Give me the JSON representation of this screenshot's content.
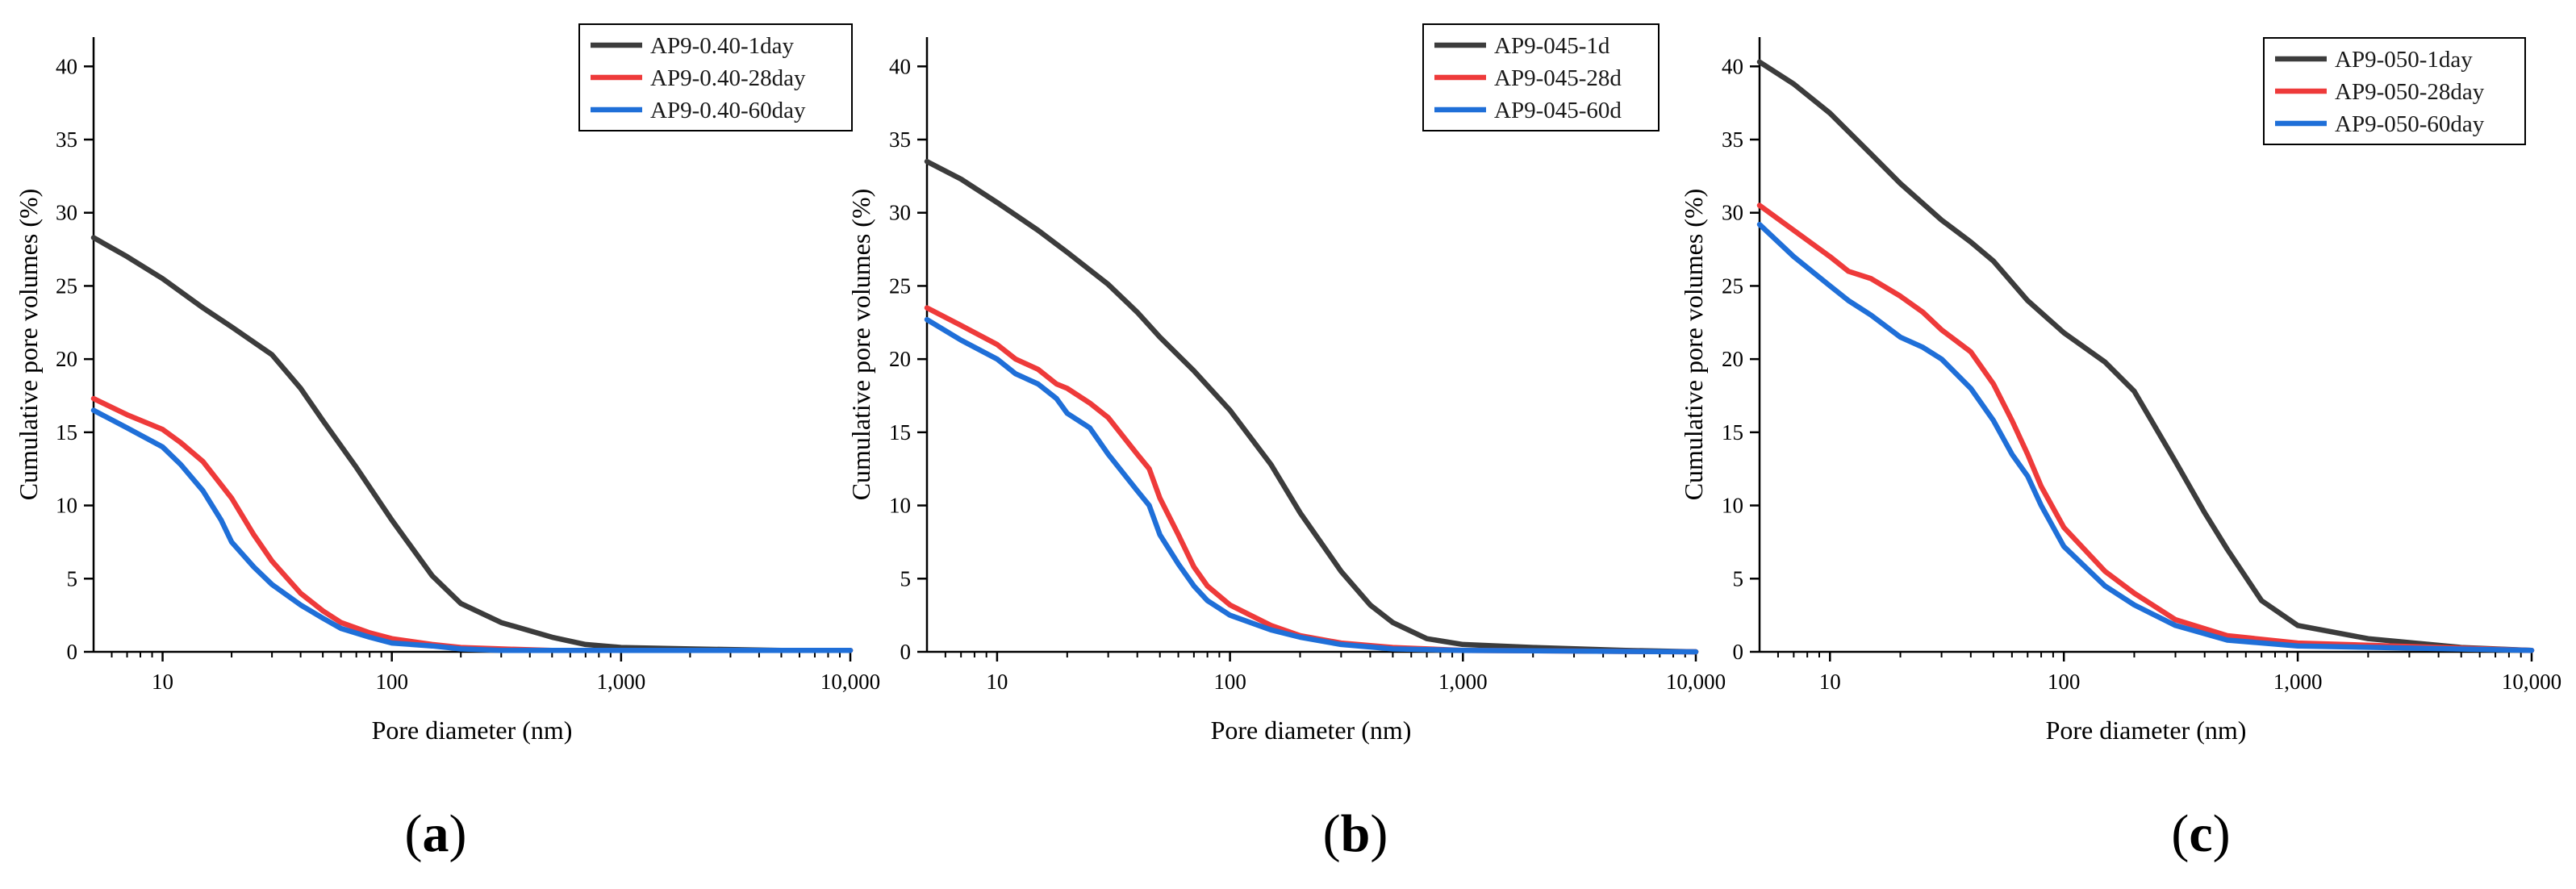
{
  "colors": {
    "s1": "#3c3c3c",
    "s2": "#ee3a3a",
    "s3": "#1f6fd8"
  },
  "chart_data": [
    {
      "type": "line",
      "panel_label": "a",
      "xlabel": "Pore diameter (nm)",
      "ylabel": "Cumulative pore volumes (%)",
      "xscale": "log",
      "xlim": [
        5,
        10000
      ],
      "ylim": [
        0,
        42
      ],
      "xticks": [
        10,
        100,
        1000,
        10000
      ],
      "xtick_labels": [
        "10",
        "100",
        "1,000",
        "10,000"
      ],
      "yticks": [
        0,
        5,
        10,
        15,
        20,
        25,
        30,
        35,
        40
      ],
      "ytick_labels": [
        "0",
        "5",
        "10",
        "15",
        "20",
        "25",
        "30",
        "35",
        "40"
      ],
      "legend_position": "top-right",
      "series": [
        {
          "name": "AP9-0.40-1day",
          "color_key": "s1",
          "x": [
            5,
            7,
            10,
            15,
            20,
            30,
            40,
            50,
            70,
            100,
            150,
            200,
            300,
            500,
            700,
            1000,
            2000,
            5000,
            10000
          ],
          "y": [
            28.3,
            27.0,
            25.5,
            23.5,
            22.2,
            20.3,
            18.0,
            15.8,
            12.6,
            9.0,
            5.2,
            3.3,
            2.0,
            1.0,
            0.5,
            0.3,
            0.2,
            0.1,
            0.1
          ]
        },
        {
          "name": "AP9-0.40-28day",
          "color_key": "s2",
          "x": [
            5,
            7,
            10,
            12,
            15,
            20,
            25,
            30,
            40,
            50,
            60,
            80,
            100,
            150,
            200,
            300,
            500,
            1000,
            10000
          ],
          "y": [
            17.3,
            16.2,
            15.2,
            14.3,
            13.0,
            10.5,
            8.0,
            6.2,
            4.0,
            2.8,
            2.0,
            1.3,
            0.9,
            0.5,
            0.3,
            0.2,
            0.1,
            0.1,
            0.1
          ]
        },
        {
          "name": "AP9-0.40-60day",
          "color_key": "s3",
          "x": [
            5,
            7,
            10,
            12,
            15,
            18,
            20,
            25,
            30,
            40,
            50,
            60,
            80,
            100,
            150,
            200,
            300,
            500,
            1000,
            10000
          ],
          "y": [
            16.5,
            15.3,
            14.0,
            12.8,
            11.0,
            9.0,
            7.5,
            5.8,
            4.6,
            3.2,
            2.3,
            1.6,
            1.0,
            0.6,
            0.4,
            0.2,
            0.1,
            0.1,
            0.1,
            0.1
          ]
        }
      ]
    },
    {
      "type": "line",
      "panel_label": "b",
      "xlabel": "Pore diameter (nm)",
      "ylabel": "Cumulative pore volumes (%)",
      "xscale": "log",
      "xlim": [
        5,
        10000
      ],
      "ylim": [
        0,
        42
      ],
      "xticks": [
        10,
        100,
        1000,
        10000
      ],
      "xtick_labels": [
        "10",
        "100",
        "1,000",
        "10,000"
      ],
      "yticks": [
        0,
        5,
        10,
        15,
        20,
        25,
        30,
        35,
        40
      ],
      "ytick_labels": [
        "0",
        "5",
        "10",
        "15",
        "20",
        "25",
        "30",
        "35",
        "40"
      ],
      "legend_position": "top-right",
      "series": [
        {
          "name": "AP9-045-1d",
          "color_key": "s1",
          "x": [
            5,
            7,
            10,
            15,
            20,
            30,
            40,
            50,
            70,
            100,
            150,
            200,
            300,
            400,
            500,
            700,
            1000,
            2000,
            5000,
            10000
          ],
          "y": [
            33.5,
            32.3,
            30.7,
            28.8,
            27.3,
            25.1,
            23.2,
            21.5,
            19.2,
            16.5,
            12.8,
            9.5,
            5.5,
            3.2,
            2.0,
            0.9,
            0.5,
            0.3,
            0.1,
            0.0
          ]
        },
        {
          "name": "AP9-045-28d",
          "color_key": "s2",
          "x": [
            5,
            7,
            10,
            12,
            15,
            18,
            20,
            25,
            30,
            40,
            45,
            50,
            60,
            70,
            80,
            100,
            150,
            200,
            300,
            500,
            1000,
            10000
          ],
          "y": [
            23.5,
            22.3,
            21.0,
            20.0,
            19.3,
            18.3,
            18.0,
            17.0,
            16.0,
            13.5,
            12.5,
            10.5,
            8.0,
            5.8,
            4.5,
            3.2,
            1.8,
            1.1,
            0.6,
            0.3,
            0.1,
            0.0
          ]
        },
        {
          "name": "AP9-045-60d",
          "color_key": "s3",
          "x": [
            5,
            7,
            10,
            12,
            15,
            18,
            20,
            25,
            30,
            40,
            45,
            50,
            60,
            70,
            80,
            100,
            150,
            200,
            300,
            500,
            1000,
            10000
          ],
          "y": [
            22.7,
            21.3,
            20.0,
            19.0,
            18.3,
            17.3,
            16.3,
            15.3,
            13.5,
            11.0,
            10.0,
            8.0,
            6.0,
            4.5,
            3.5,
            2.5,
            1.5,
            1.0,
            0.5,
            0.2,
            0.1,
            0.0
          ]
        }
      ]
    },
    {
      "type": "line",
      "panel_label": "c",
      "xlabel": "Pore diameter (nm)",
      "ylabel": "Cumulative pore volumes (%)",
      "xscale": "log",
      "xlim": [
        5,
        10000
      ],
      "ylim": [
        0,
        42
      ],
      "xticks": [
        10,
        100,
        1000,
        10000
      ],
      "xtick_labels": [
        "10",
        "100",
        "1,000",
        "10,000"
      ],
      "yticks": [
        0,
        5,
        10,
        15,
        20,
        25,
        30,
        35,
        40
      ],
      "ytick_labels": [
        "0",
        "5",
        "10",
        "15",
        "20",
        "25",
        "30",
        "35",
        "40"
      ],
      "legend_position": "top-right",
      "series": [
        {
          "name": "AP9-050-1day",
          "color_key": "s1",
          "x": [
            5,
            7,
            10,
            15,
            20,
            30,
            40,
            50,
            70,
            100,
            150,
            200,
            300,
            400,
            500,
            700,
            1000,
            2000,
            5000,
            10000
          ],
          "y": [
            40.3,
            38.8,
            36.8,
            34.0,
            32.0,
            29.5,
            28.0,
            26.7,
            24.0,
            21.8,
            19.8,
            17.8,
            13.0,
            9.5,
            7.0,
            3.5,
            1.8,
            0.9,
            0.3,
            0.1
          ]
        },
        {
          "name": "AP9-050-28day",
          "color_key": "s2",
          "x": [
            5,
            7,
            10,
            12,
            15,
            20,
            25,
            30,
            40,
            50,
            60,
            70,
            80,
            100,
            150,
            200,
            300,
            500,
            1000,
            10000
          ],
          "y": [
            30.5,
            28.8,
            27.0,
            26.0,
            25.5,
            24.3,
            23.2,
            22.0,
            20.5,
            18.3,
            15.8,
            13.5,
            11.3,
            8.5,
            5.5,
            4.0,
            2.2,
            1.1,
            0.6,
            0.1
          ]
        },
        {
          "name": "AP9-050-60day",
          "color_key": "s3",
          "x": [
            5,
            7,
            10,
            12,
            15,
            20,
            25,
            30,
            40,
            50,
            60,
            70,
            80,
            100,
            150,
            200,
            300,
            500,
            1000,
            10000
          ],
          "y": [
            29.2,
            27.0,
            25.0,
            24.0,
            23.0,
            21.5,
            20.8,
            20.0,
            18.0,
            15.8,
            13.5,
            12.0,
            10.0,
            7.2,
            4.5,
            3.2,
            1.8,
            0.8,
            0.4,
            0.1
          ]
        }
      ]
    }
  ]
}
